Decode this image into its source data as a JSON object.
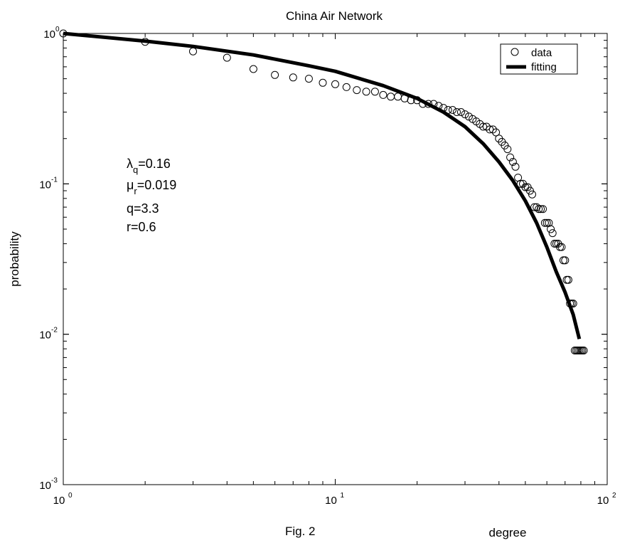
{
  "chart_data": {
    "type": "scatter",
    "title": "China Air Network",
    "xlabel": "degree",
    "ylabel": "probability",
    "xscale": "log",
    "yscale": "log",
    "xlim": [
      1,
      100
    ],
    "ylim": [
      0.001,
      1
    ],
    "x_ticks": [
      {
        "value": 1,
        "base": "10",
        "exp": "0"
      },
      {
        "value": 10,
        "base": "10",
        "exp": "1"
      },
      {
        "value": 100,
        "base": "10",
        "exp": "2"
      }
    ],
    "y_ticks": [
      {
        "value": 1,
        "base": "10",
        "exp": "0"
      },
      {
        "value": 0.1,
        "base": "10",
        "exp": "-1"
      },
      {
        "value": 0.01,
        "base": "10",
        "exp": "-2"
      },
      {
        "value": 0.001,
        "base": "10",
        "exp": "-3"
      }
    ],
    "legend": {
      "position": "top-right",
      "entries": [
        {
          "label": "data",
          "marker": "open-circle"
        },
        {
          "label": "fitting",
          "marker": "thick-line"
        }
      ]
    },
    "grid": false,
    "series": [
      {
        "name": "data",
        "marker": "open-circle",
        "points": [
          [
            1,
            1.0
          ],
          [
            2,
            0.88
          ],
          [
            3,
            0.76
          ],
          [
            4,
            0.69
          ],
          [
            5,
            0.58
          ],
          [
            6,
            0.53
          ],
          [
            7,
            0.51
          ],
          [
            8,
            0.5
          ],
          [
            9,
            0.47
          ],
          [
            10,
            0.46
          ],
          [
            11,
            0.44
          ],
          [
            12,
            0.42
          ],
          [
            13,
            0.41
          ],
          [
            14,
            0.41
          ],
          [
            15,
            0.39
          ],
          [
            16,
            0.38
          ],
          [
            17,
            0.38
          ],
          [
            18,
            0.37
          ],
          [
            19,
            0.36
          ],
          [
            20,
            0.36
          ],
          [
            21,
            0.34
          ],
          [
            22,
            0.34
          ],
          [
            23,
            0.34
          ],
          [
            24,
            0.33
          ],
          [
            25,
            0.32
          ],
          [
            26,
            0.31
          ],
          [
            27,
            0.31
          ],
          [
            28,
            0.3
          ],
          [
            29,
            0.3
          ],
          [
            30,
            0.29
          ],
          [
            31,
            0.28
          ],
          [
            32,
            0.27
          ],
          [
            33,
            0.26
          ],
          [
            34,
            0.25
          ],
          [
            35,
            0.24
          ],
          [
            36,
            0.24
          ],
          [
            37,
            0.23
          ],
          [
            38,
            0.23
          ],
          [
            39,
            0.22
          ],
          [
            40,
            0.2
          ],
          [
            41,
            0.19
          ],
          [
            42,
            0.18
          ],
          [
            43,
            0.17
          ],
          [
            44,
            0.15
          ],
          [
            45,
            0.14
          ],
          [
            46,
            0.13
          ],
          [
            47,
            0.11
          ],
          [
            48,
            0.1
          ],
          [
            49,
            0.1
          ],
          [
            50,
            0.095
          ],
          [
            51,
            0.095
          ],
          [
            52,
            0.09
          ],
          [
            53,
            0.085
          ],
          [
            54,
            0.07
          ],
          [
            55,
            0.07
          ],
          [
            56,
            0.068
          ],
          [
            57,
            0.068
          ],
          [
            58,
            0.068
          ],
          [
            59,
            0.055
          ],
          [
            60,
            0.055
          ],
          [
            61,
            0.055
          ],
          [
            62,
            0.05
          ],
          [
            63,
            0.047
          ],
          [
            64,
            0.04
          ],
          [
            65,
            0.04
          ],
          [
            66,
            0.04
          ],
          [
            67,
            0.038
          ],
          [
            68,
            0.038
          ],
          [
            69,
            0.031
          ],
          [
            70,
            0.031
          ],
          [
            71,
            0.023
          ],
          [
            72,
            0.023
          ],
          [
            73,
            0.016
          ],
          [
            74,
            0.016
          ],
          [
            75,
            0.016
          ],
          [
            76,
            0.0078
          ],
          [
            77,
            0.0078
          ],
          [
            78,
            0.0078
          ],
          [
            79,
            0.0078
          ],
          [
            80,
            0.0078
          ],
          [
            81,
            0.0078
          ],
          [
            82,
            0.0078
          ]
        ]
      },
      {
        "name": "fitting",
        "marker": "line",
        "points": [
          [
            1,
            1.0
          ],
          [
            2,
            0.89
          ],
          [
            3,
            0.82
          ],
          [
            5,
            0.72
          ],
          [
            8,
            0.61
          ],
          [
            10,
            0.56
          ],
          [
            15,
            0.45
          ],
          [
            20,
            0.37
          ],
          [
            25,
            0.3
          ],
          [
            30,
            0.24
          ],
          [
            35,
            0.185
          ],
          [
            40,
            0.14
          ],
          [
            45,
            0.105
          ],
          [
            50,
            0.077
          ],
          [
            55,
            0.055
          ],
          [
            60,
            0.038
          ],
          [
            65,
            0.026
          ],
          [
            70,
            0.019
          ],
          [
            75,
            0.0135
          ],
          [
            79,
            0.0093
          ]
        ]
      }
    ],
    "annotations": [
      {
        "symbol": "λ",
        "sub": "q",
        "rest": "=0.16"
      },
      {
        "symbol": "μ",
        "sub": "r",
        "rest": "=0.019"
      },
      {
        "symbol": "",
        "sub": "",
        "rest": "q=3.3"
      },
      {
        "symbol": "",
        "sub": "",
        "rest": "r=0.6"
      }
    ]
  },
  "caption": "Fig. 2"
}
